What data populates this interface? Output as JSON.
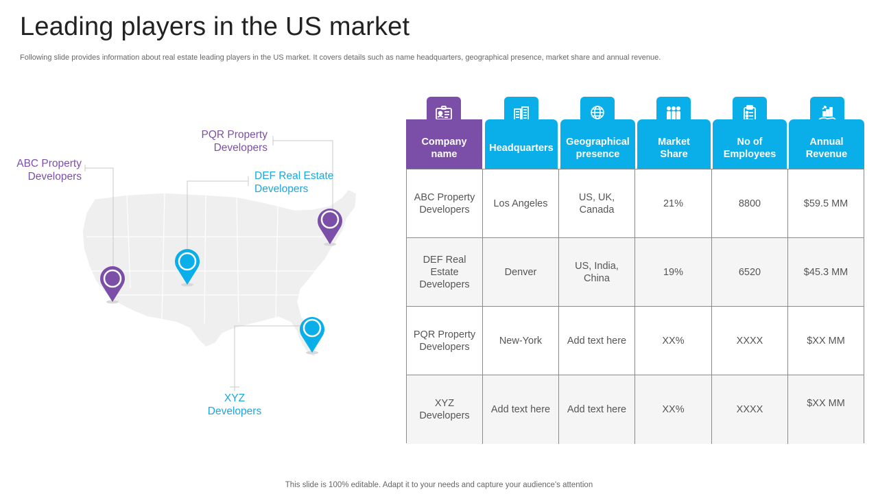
{
  "title": "Leading players in the US market",
  "subtitle": "Following slide provides information about real estate leading players in the US market. It covers details such as name headquarters, geographical presence, market share and annual revenue.",
  "footer": "This slide is 100% editable. Adapt it to your needs and capture your audience's attention",
  "colors": {
    "purple": "#7b4fa8",
    "blue": "#0aaee8",
    "map": "#efefef"
  },
  "map": {
    "callouts": {
      "pqr": "PQR Property\nDevelopers",
      "abc": "ABC Property\nDevelopers",
      "def": "DEF Real Estate\nDevelopers",
      "xyz": "XYZ\nDevelopers"
    }
  },
  "table": {
    "headers": [
      {
        "label": "Company\nname",
        "icon": "id-card-icon"
      },
      {
        "label": "Headquarters",
        "icon": "building-icon"
      },
      {
        "label": "Geographical\npresence",
        "icon": "globe-icon"
      },
      {
        "label": "Market\nShare",
        "icon": "people-group-icon"
      },
      {
        "label": "No of\nEmployees",
        "icon": "clipboard-icon"
      },
      {
        "label": "Annual\nRevenue",
        "icon": "revenue-growth-icon"
      }
    ],
    "rows": [
      [
        "ABC Property\nDevelopers",
        "Los Angeles",
        "US, UK,\nCanada",
        "21%",
        "8800",
        "$59.5 MM"
      ],
      [
        "DEF Real\nEstate\nDevelopers",
        "Denver",
        "US, India,\nChina",
        "19%",
        "6520",
        "$45.3 MM"
      ],
      [
        "PQR Property\nDevelopers",
        "New-York",
        "Add text here",
        "XX%",
        "XXXX",
        "$XX MM"
      ],
      [
        "XYZ\nDevelopers",
        "Add text here",
        "Add text here",
        "XX%",
        "XXXX",
        "$XX MM"
      ]
    ]
  }
}
